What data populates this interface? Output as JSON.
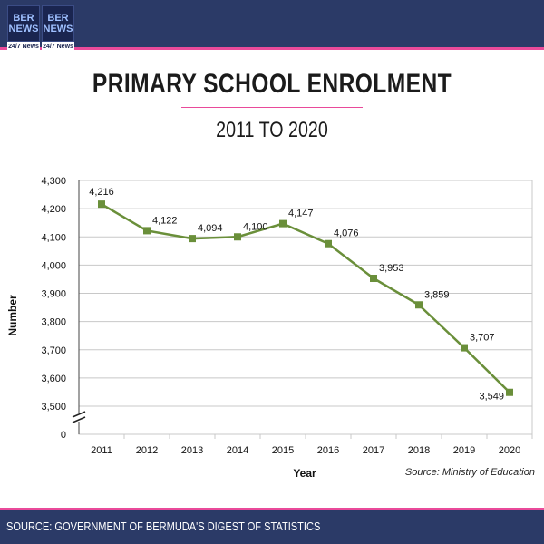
{
  "header": {
    "logo_text": [
      "BER",
      "NEWS"
    ],
    "logo_tag": "24/7 News"
  },
  "title": "PRIMARY SCHOOL ENROLMENT",
  "subtitle": "2011 TO 2020",
  "source_note": "Source: Ministry of Education",
  "footer": "SOURCE: GOVERNMENT OF BERMUDA'S DIGEST OF STATISTICS",
  "colors": {
    "header_bg": "#2b3a67",
    "accent": "#e94a9a",
    "series": "#6a8f3a"
  },
  "chart_data": {
    "type": "line",
    "x": [
      "2011",
      "2012",
      "2013",
      "2014",
      "2015",
      "2016",
      "2017",
      "2018",
      "2019",
      "2020"
    ],
    "series": [
      {
        "values": [
          4216,
          4122,
          4094,
          4100,
          4147,
          4076,
          3953,
          3859,
          3707,
          3549
        ],
        "data_labels": [
          "4,216",
          "4,122",
          "4,094",
          "4,100",
          "4,147",
          "4,076",
          "3,953",
          "3,859",
          "3,707",
          "3,549"
        ]
      }
    ],
    "xlabel": "Year",
    "ylabel": "Number",
    "ylim": [
      3500,
      4300
    ],
    "y_ticks": [
      3500,
      3600,
      3700,
      3800,
      3900,
      4000,
      4100,
      4200,
      4300
    ],
    "y_tick_labels": [
      "3,500",
      "3,600",
      "3,700",
      "3,800",
      "3,900",
      "4,000",
      "4,100",
      "4,200",
      "4,300"
    ],
    "y_zero_label": "0",
    "axis_break": true,
    "grid": true,
    "legend": "none"
  }
}
